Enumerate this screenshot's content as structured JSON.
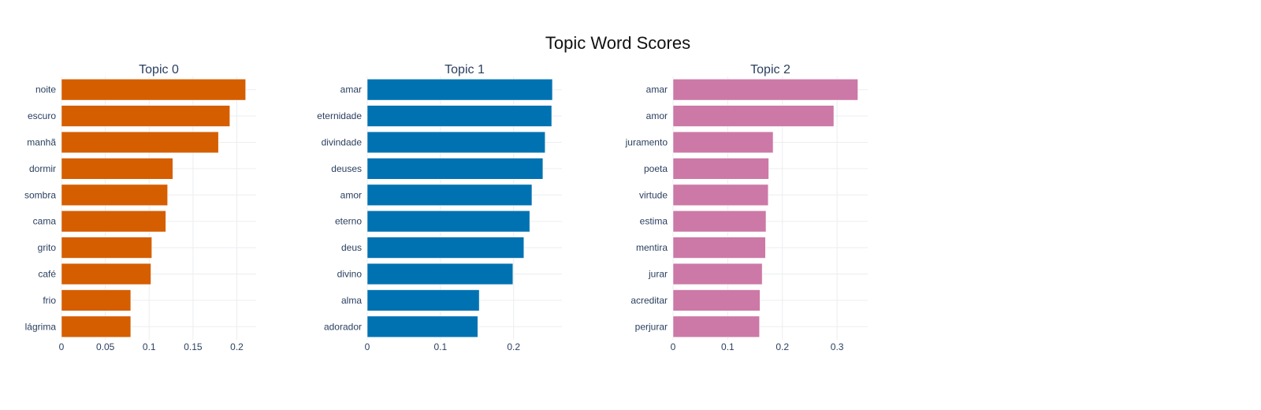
{
  "title": "Topic Word Scores",
  "chart_data": [
    {
      "type": "bar",
      "orientation": "horizontal",
      "title": "Topic 0",
      "color": "#D55E00",
      "categories": [
        "noite",
        "escuro",
        "manhã",
        "dormir",
        "sombra",
        "cama",
        "grito",
        "café",
        "frio",
        "lágrima"
      ],
      "values": [
        0.21,
        0.192,
        0.179,
        0.127,
        0.121,
        0.119,
        0.103,
        0.102,
        0.079,
        0.079
      ],
      "xlim": [
        0,
        0.222
      ],
      "xticks": [
        0,
        0.05,
        0.1,
        0.15,
        0.2
      ],
      "xtick_labels": [
        "0",
        "0.05",
        "0.1",
        "0.15",
        "0.2"
      ],
      "grid": true
    },
    {
      "type": "bar",
      "orientation": "horizontal",
      "title": "Topic 1",
      "color": "#0072B2",
      "categories": [
        "amar",
        "eternidade",
        "divindade",
        "deuses",
        "amor",
        "eterno",
        "deus",
        "divino",
        "alma",
        "adorador"
      ],
      "values": [
        0.253,
        0.252,
        0.243,
        0.24,
        0.225,
        0.222,
        0.214,
        0.199,
        0.153,
        0.151
      ],
      "xlim": [
        0,
        0.266
      ],
      "xticks": [
        0,
        0.1,
        0.2
      ],
      "xtick_labels": [
        "0",
        "0.1",
        "0.2"
      ],
      "grid": true
    },
    {
      "type": "bar",
      "orientation": "horizontal",
      "title": "Topic 2",
      "color": "#CC79A7",
      "categories": [
        "amar",
        "amor",
        "juramento",
        "poeta",
        "virtude",
        "estima",
        "mentira",
        "jurar",
        "acreditar",
        "perjurar"
      ],
      "values": [
        0.338,
        0.294,
        0.183,
        0.175,
        0.174,
        0.17,
        0.169,
        0.163,
        0.159,
        0.158
      ],
      "xlim": [
        0,
        0.356
      ],
      "xticks": [
        0,
        0.1,
        0.2,
        0.3
      ],
      "xtick_labels": [
        "0",
        "0.1",
        "0.2",
        "0.3"
      ],
      "grid": true
    }
  ]
}
